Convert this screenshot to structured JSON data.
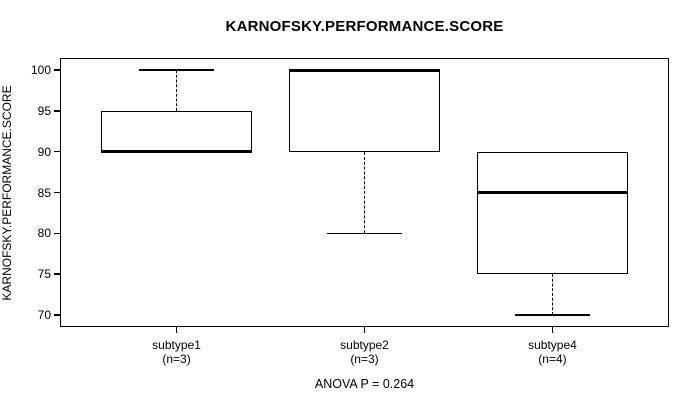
{
  "chart_data": {
    "type": "boxplot",
    "title": "KARNOFSKY.PERFORMANCE.SCORE",
    "ylabel": "KARNOFSKY.PERFORMANCE.SCORE",
    "xlabel": "",
    "ylim": [
      68.5,
      101.5
    ],
    "yticks": [
      70,
      75,
      80,
      85,
      90,
      95,
      100
    ],
    "grid": false,
    "annotation": "ANOVA P = 0.264",
    "colors": {
      "foreground": "#000000",
      "background": "#ffffff"
    },
    "groups": [
      {
        "label": "subtype1",
        "sublabel": "(n=3)",
        "min": 90,
        "q1": 90,
        "median": 90,
        "q3": 95,
        "max": 100
      },
      {
        "label": "subtype2",
        "sublabel": "(n=3)",
        "min": 80,
        "q1": 90,
        "median": 100,
        "q3": 100,
        "max": 100
      },
      {
        "label": "subtype4",
        "sublabel": "(n=4)",
        "min": 70,
        "q1": 75,
        "median": 85,
        "q3": 90,
        "max": 90
      }
    ]
  }
}
